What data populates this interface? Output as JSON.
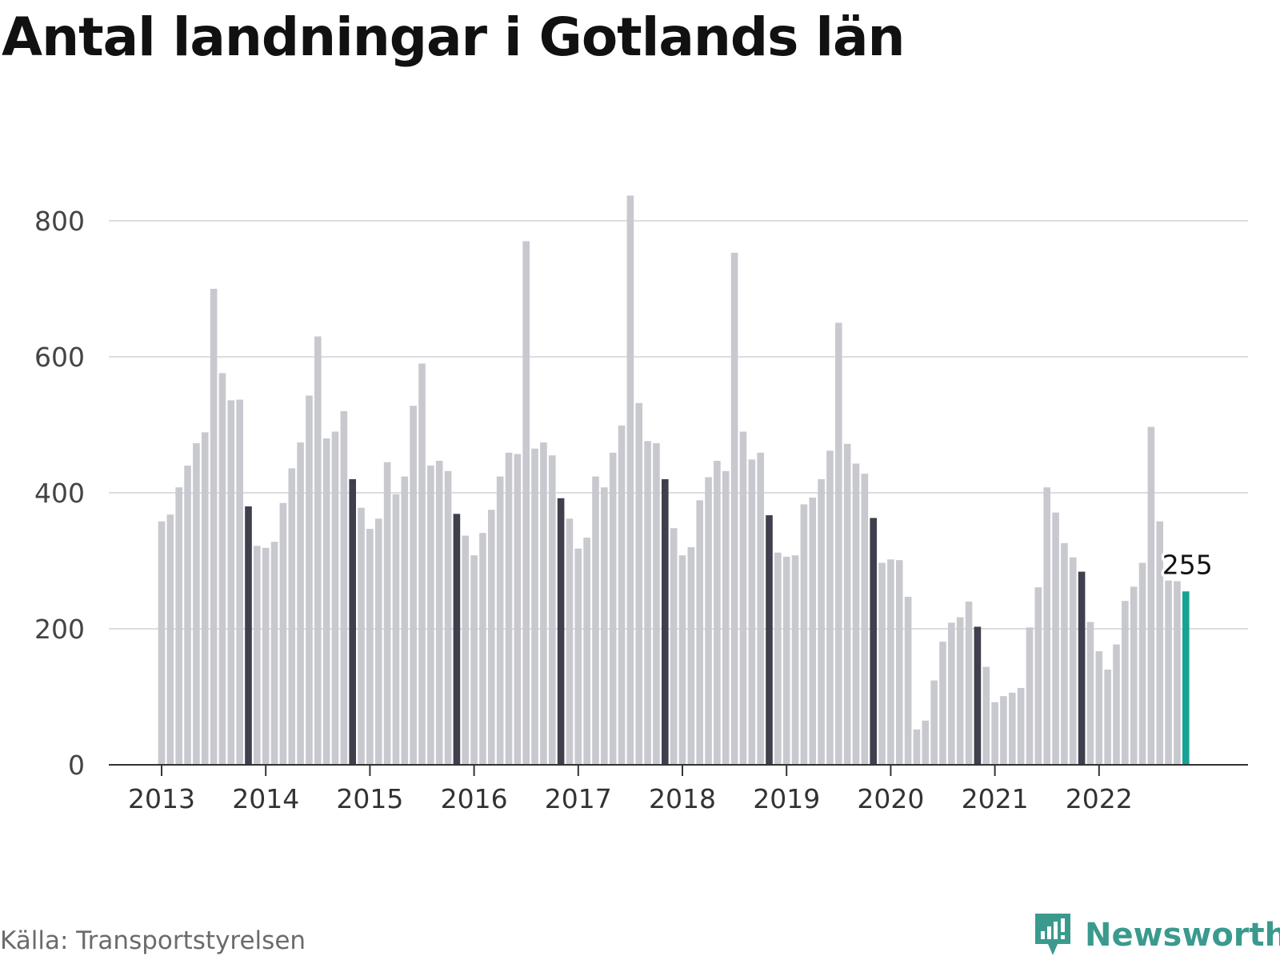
{
  "title": "Antal landningar i Gotlands län",
  "source": "Källa: Transportstyrelsen",
  "brand": {
    "name": "Newsworthy",
    "icon": "newsworthy-logo-icon"
  },
  "colors": {
    "bar": "#c8c8cf",
    "highlight": "#3f3f4d",
    "latest": "#15a394",
    "grid": "#dddde2",
    "axis": "#333333",
    "brand": "#3a9a8e"
  },
  "chart_data": {
    "type": "bar",
    "title": "Antal landningar i Gotlands län",
    "xlabel": "",
    "ylabel": "",
    "ylim": [
      0,
      840
    ],
    "yticks": [
      "0",
      "200",
      "400",
      "600",
      "800"
    ],
    "xticks": [
      "2013",
      "2014",
      "2015",
      "2016",
      "2017",
      "2018",
      "2019",
      "2020",
      "2021",
      "2022"
    ],
    "grid": true,
    "start": "2013-01",
    "highlight_month": "November",
    "latest_label": "255",
    "values": [
      358,
      368,
      408,
      440,
      473,
      489,
      700,
      576,
      536,
      537,
      380,
      322,
      319,
      328,
      385,
      436,
      474,
      543,
      630,
      480,
      490,
      520,
      420,
      378,
      347,
      362,
      445,
      398,
      424,
      528,
      590,
      440,
      447,
      432,
      369,
      337,
      308,
      341,
      375,
      424,
      459,
      457,
      770,
      465,
      474,
      455,
      392,
      362,
      318,
      334,
      424,
      408,
      459,
      499,
      837,
      532,
      476,
      473,
      420,
      348,
      308,
      320,
      389,
      423,
      447,
      432,
      753,
      490,
      449,
      459,
      367,
      312,
      306,
      308,
      383,
      393,
      420,
      462,
      650,
      472,
      443,
      428,
      363,
      297,
      302,
      301,
      247,
      52,
      65,
      124,
      181,
      209,
      217,
      240,
      203,
      144,
      92,
      101,
      106,
      113,
      202,
      261,
      408,
      371,
      326,
      305,
      284,
      210,
      167,
      140,
      177,
      241,
      262,
      297,
      497,
      358,
      271,
      270,
      255
    ]
  }
}
